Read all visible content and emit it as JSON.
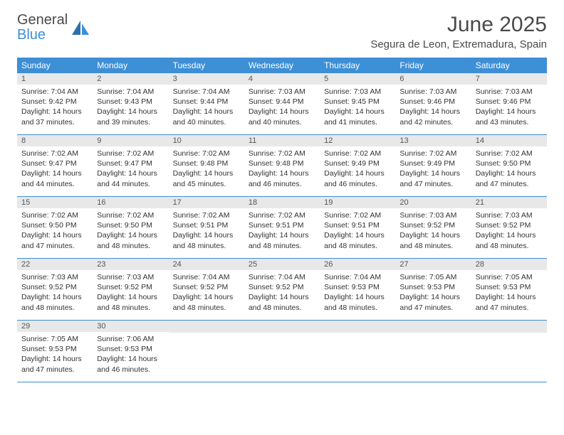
{
  "logo": {
    "text1": "General",
    "text2": "Blue"
  },
  "title": "June 2025",
  "location": "Segura de Leon, Extremadura, Spain",
  "colors": {
    "header_bg": "#3d8fd6",
    "header_text": "#ffffff",
    "daynum_bg": "#e8e8e8",
    "border": "#3d8fd6",
    "body_text": "#333333",
    "logo_gray": "#4a4a4a",
    "logo_blue": "#3d8fd6"
  },
  "day_names": [
    "Sunday",
    "Monday",
    "Tuesday",
    "Wednesday",
    "Thursday",
    "Friday",
    "Saturday"
  ],
  "weeks": [
    [
      {
        "num": "1",
        "sunrise": "Sunrise: 7:04 AM",
        "sunset": "Sunset: 9:42 PM",
        "daylight": "Daylight: 14 hours and 37 minutes."
      },
      {
        "num": "2",
        "sunrise": "Sunrise: 7:04 AM",
        "sunset": "Sunset: 9:43 PM",
        "daylight": "Daylight: 14 hours and 39 minutes."
      },
      {
        "num": "3",
        "sunrise": "Sunrise: 7:04 AM",
        "sunset": "Sunset: 9:44 PM",
        "daylight": "Daylight: 14 hours and 40 minutes."
      },
      {
        "num": "4",
        "sunrise": "Sunrise: 7:03 AM",
        "sunset": "Sunset: 9:44 PM",
        "daylight": "Daylight: 14 hours and 40 minutes."
      },
      {
        "num": "5",
        "sunrise": "Sunrise: 7:03 AM",
        "sunset": "Sunset: 9:45 PM",
        "daylight": "Daylight: 14 hours and 41 minutes."
      },
      {
        "num": "6",
        "sunrise": "Sunrise: 7:03 AM",
        "sunset": "Sunset: 9:46 PM",
        "daylight": "Daylight: 14 hours and 42 minutes."
      },
      {
        "num": "7",
        "sunrise": "Sunrise: 7:03 AM",
        "sunset": "Sunset: 9:46 PM",
        "daylight": "Daylight: 14 hours and 43 minutes."
      }
    ],
    [
      {
        "num": "8",
        "sunrise": "Sunrise: 7:02 AM",
        "sunset": "Sunset: 9:47 PM",
        "daylight": "Daylight: 14 hours and 44 minutes."
      },
      {
        "num": "9",
        "sunrise": "Sunrise: 7:02 AM",
        "sunset": "Sunset: 9:47 PM",
        "daylight": "Daylight: 14 hours and 44 minutes."
      },
      {
        "num": "10",
        "sunrise": "Sunrise: 7:02 AM",
        "sunset": "Sunset: 9:48 PM",
        "daylight": "Daylight: 14 hours and 45 minutes."
      },
      {
        "num": "11",
        "sunrise": "Sunrise: 7:02 AM",
        "sunset": "Sunset: 9:48 PM",
        "daylight": "Daylight: 14 hours and 46 minutes."
      },
      {
        "num": "12",
        "sunrise": "Sunrise: 7:02 AM",
        "sunset": "Sunset: 9:49 PM",
        "daylight": "Daylight: 14 hours and 46 minutes."
      },
      {
        "num": "13",
        "sunrise": "Sunrise: 7:02 AM",
        "sunset": "Sunset: 9:49 PM",
        "daylight": "Daylight: 14 hours and 47 minutes."
      },
      {
        "num": "14",
        "sunrise": "Sunrise: 7:02 AM",
        "sunset": "Sunset: 9:50 PM",
        "daylight": "Daylight: 14 hours and 47 minutes."
      }
    ],
    [
      {
        "num": "15",
        "sunrise": "Sunrise: 7:02 AM",
        "sunset": "Sunset: 9:50 PM",
        "daylight": "Daylight: 14 hours and 47 minutes."
      },
      {
        "num": "16",
        "sunrise": "Sunrise: 7:02 AM",
        "sunset": "Sunset: 9:50 PM",
        "daylight": "Daylight: 14 hours and 48 minutes."
      },
      {
        "num": "17",
        "sunrise": "Sunrise: 7:02 AM",
        "sunset": "Sunset: 9:51 PM",
        "daylight": "Daylight: 14 hours and 48 minutes."
      },
      {
        "num": "18",
        "sunrise": "Sunrise: 7:02 AM",
        "sunset": "Sunset: 9:51 PM",
        "daylight": "Daylight: 14 hours and 48 minutes."
      },
      {
        "num": "19",
        "sunrise": "Sunrise: 7:02 AM",
        "sunset": "Sunset: 9:51 PM",
        "daylight": "Daylight: 14 hours and 48 minutes."
      },
      {
        "num": "20",
        "sunrise": "Sunrise: 7:03 AM",
        "sunset": "Sunset: 9:52 PM",
        "daylight": "Daylight: 14 hours and 48 minutes."
      },
      {
        "num": "21",
        "sunrise": "Sunrise: 7:03 AM",
        "sunset": "Sunset: 9:52 PM",
        "daylight": "Daylight: 14 hours and 48 minutes."
      }
    ],
    [
      {
        "num": "22",
        "sunrise": "Sunrise: 7:03 AM",
        "sunset": "Sunset: 9:52 PM",
        "daylight": "Daylight: 14 hours and 48 minutes."
      },
      {
        "num": "23",
        "sunrise": "Sunrise: 7:03 AM",
        "sunset": "Sunset: 9:52 PM",
        "daylight": "Daylight: 14 hours and 48 minutes."
      },
      {
        "num": "24",
        "sunrise": "Sunrise: 7:04 AM",
        "sunset": "Sunset: 9:52 PM",
        "daylight": "Daylight: 14 hours and 48 minutes."
      },
      {
        "num": "25",
        "sunrise": "Sunrise: 7:04 AM",
        "sunset": "Sunset: 9:52 PM",
        "daylight": "Daylight: 14 hours and 48 minutes."
      },
      {
        "num": "26",
        "sunrise": "Sunrise: 7:04 AM",
        "sunset": "Sunset: 9:53 PM",
        "daylight": "Daylight: 14 hours and 48 minutes."
      },
      {
        "num": "27",
        "sunrise": "Sunrise: 7:05 AM",
        "sunset": "Sunset: 9:53 PM",
        "daylight": "Daylight: 14 hours and 47 minutes."
      },
      {
        "num": "28",
        "sunrise": "Sunrise: 7:05 AM",
        "sunset": "Sunset: 9:53 PM",
        "daylight": "Daylight: 14 hours and 47 minutes."
      }
    ],
    [
      {
        "num": "29",
        "sunrise": "Sunrise: 7:05 AM",
        "sunset": "Sunset: 9:53 PM",
        "daylight": "Daylight: 14 hours and 47 minutes."
      },
      {
        "num": "30",
        "sunrise": "Sunrise: 7:06 AM",
        "sunset": "Sunset: 9:53 PM",
        "daylight": "Daylight: 14 hours and 46 minutes."
      },
      null,
      null,
      null,
      null,
      null
    ]
  ]
}
